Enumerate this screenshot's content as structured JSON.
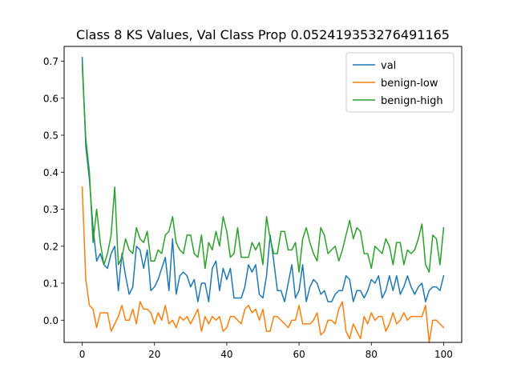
{
  "chart_data": {
    "type": "line",
    "title": "Class 8 KS Values, Val Class Prop 0.052419353276491165",
    "xlabel": "",
    "ylabel": "",
    "xlim": [
      -5,
      105
    ],
    "ylim": [
      -0.06,
      0.74
    ],
    "x_ticks": [
      0,
      20,
      40,
      60,
      80,
      100
    ],
    "y_ticks": [
      0.0,
      0.1,
      0.2,
      0.3,
      0.4,
      0.5,
      0.6,
      0.7
    ],
    "grid": false,
    "legend_position": "upper-right",
    "x_start": 0,
    "x_step": 1,
    "series": [
      {
        "name": "val",
        "color": "#1f77b4",
        "values": [
          0.71,
          0.47,
          0.38,
          0.25,
          0.16,
          0.18,
          0.15,
          0.14,
          0.18,
          0.2,
          0.08,
          0.18,
          0.12,
          0.07,
          0.09,
          0.2,
          0.19,
          0.14,
          0.19,
          0.08,
          0.09,
          0.11,
          0.14,
          0.17,
          0.08,
          0.22,
          0.07,
          0.12,
          0.13,
          0.12,
          0.09,
          0.11,
          0.05,
          0.1,
          0.1,
          0.05,
          0.14,
          0.16,
          0.08,
          0.14,
          0.11,
          0.14,
          0.06,
          0.06,
          0.06,
          0.09,
          0.15,
          0.13,
          0.15,
          0.07,
          0.06,
          0.12,
          0.23,
          0.16,
          0.08,
          0.08,
          0.05,
          0.1,
          0.15,
          0.06,
          0.08,
          0.15,
          0.05,
          0.09,
          0.11,
          0.1,
          0.07,
          0.08,
          0.05,
          0.05,
          0.07,
          0.08,
          0.08,
          0.12,
          0.11,
          0.05,
          0.08,
          0.08,
          0.06,
          0.08,
          0.11,
          0.1,
          0.12,
          0.06,
          0.08,
          0.12,
          0.08,
          0.12,
          0.07,
          0.09,
          0.12,
          0.09,
          0.07,
          0.09,
          0.1,
          0.05,
          0.08,
          0.09,
          0.09,
          0.08,
          0.12
        ]
      },
      {
        "name": "benign-low",
        "color": "#ff7f0e",
        "values": [
          0.36,
          0.11,
          0.04,
          0.03,
          -0.02,
          0.02,
          0.02,
          0.02,
          -0.03,
          -0.01,
          0.01,
          0.04,
          0.0,
          0.0,
          0.03,
          -0.01,
          0.05,
          0.03,
          0.03,
          0.02,
          -0.01,
          0.02,
          0.0,
          0.04,
          -0.01,
          0.0,
          -0.02,
          0.01,
          0.0,
          0.01,
          -0.01,
          0.01,
          0.03,
          -0.03,
          0.01,
          -0.01,
          0.01,
          0.0,
          0.01,
          -0.03,
          -0.02,
          0.01,
          0.01,
          0.0,
          -0.01,
          0.03,
          0.04,
          0.02,
          0.03,
          0.0,
          0.03,
          -0.03,
          -0.03,
          0.01,
          0.01,
          0.0,
          -0.01,
          -0.02,
          0.0,
          0.0,
          0.04,
          -0.01,
          -0.01,
          -0.01,
          0.0,
          0.02,
          -0.04,
          -0.03,
          0.0,
          0.0,
          -0.01,
          0.03,
          0.05,
          -0.03,
          -0.05,
          -0.01,
          -0.03,
          -0.05,
          0.01,
          -0.01,
          0.02,
          0.0,
          0.01,
          0.01,
          -0.03,
          -0.01,
          0.02,
          -0.01,
          0.0,
          0.02,
          0.0,
          0.01,
          0.01,
          0.01,
          0.01,
          0.04,
          -0.06,
          0.0,
          0.0,
          -0.01,
          -0.02
        ]
      },
      {
        "name": "benign-high",
        "color": "#2ca02c",
        "values": [
          0.69,
          0.49,
          0.4,
          0.21,
          0.3,
          0.21,
          0.15,
          0.18,
          0.23,
          0.36,
          0.15,
          0.17,
          0.22,
          0.19,
          0.18,
          0.25,
          0.22,
          0.21,
          0.24,
          0.16,
          0.16,
          0.19,
          0.18,
          0.23,
          0.24,
          0.28,
          0.21,
          0.19,
          0.18,
          0.23,
          0.23,
          0.18,
          0.17,
          0.23,
          0.14,
          0.21,
          0.19,
          0.24,
          0.2,
          0.28,
          0.24,
          0.17,
          0.18,
          0.25,
          0.17,
          0.17,
          0.17,
          0.21,
          0.19,
          0.21,
          0.15,
          0.28,
          0.22,
          0.18,
          0.18,
          0.24,
          0.24,
          0.19,
          0.19,
          0.21,
          0.13,
          0.22,
          0.25,
          0.21,
          0.18,
          0.16,
          0.25,
          0.23,
          0.18,
          0.19,
          0.2,
          0.16,
          0.19,
          0.23,
          0.27,
          0.22,
          0.25,
          0.24,
          0.18,
          0.18,
          0.14,
          0.2,
          0.19,
          0.18,
          0.22,
          0.2,
          0.15,
          0.21,
          0.21,
          0.15,
          0.19,
          0.18,
          0.19,
          0.22,
          0.26,
          0.15,
          0.13,
          0.23,
          0.22,
          0.15,
          0.25
        ]
      }
    ]
  }
}
